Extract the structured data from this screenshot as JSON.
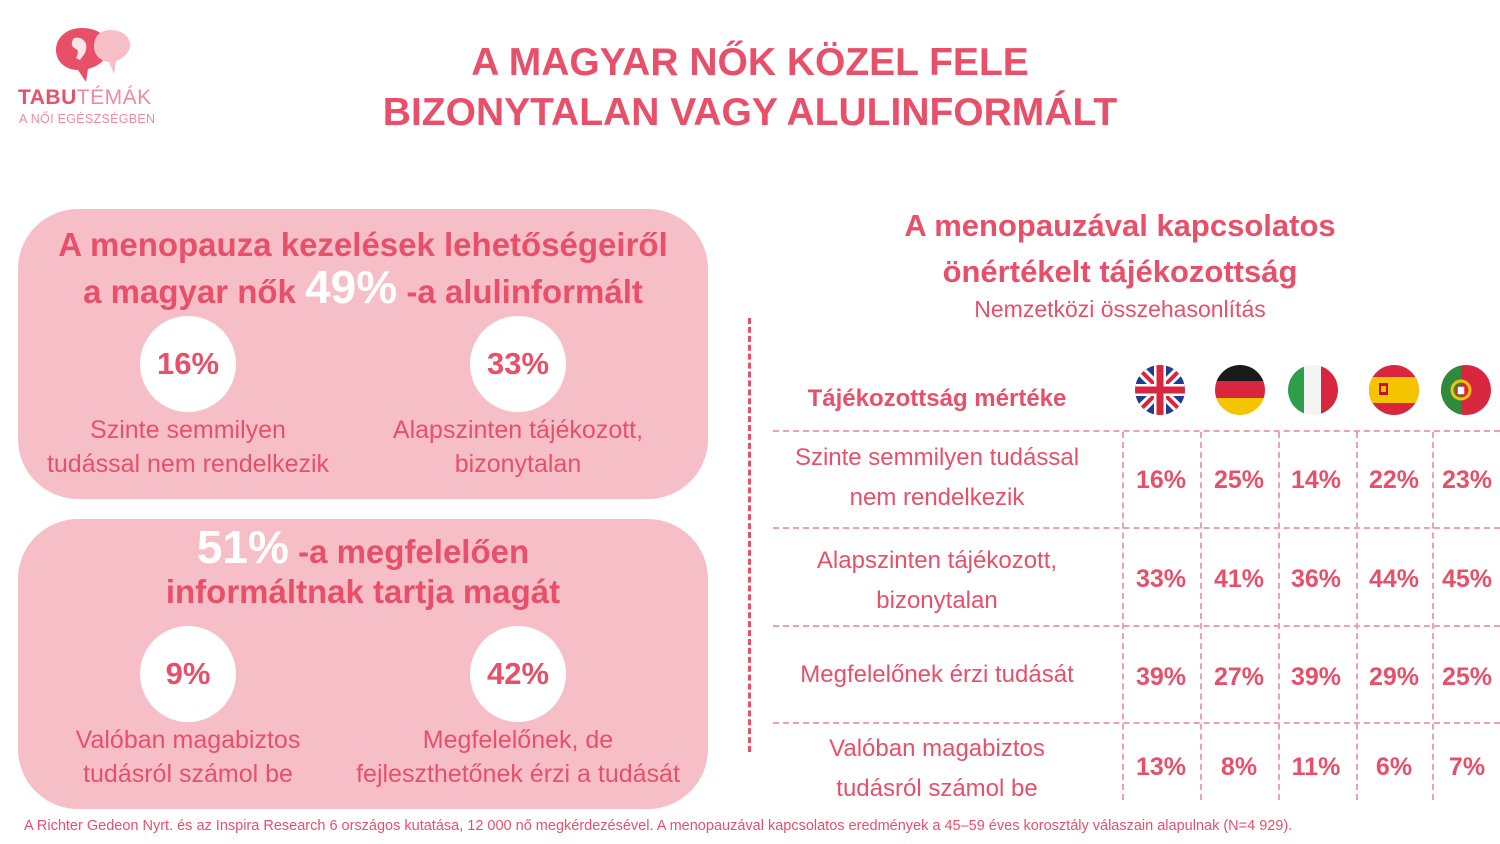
{
  "logo": {
    "icon": "speech-bubble-woman-profile-icon",
    "word_bold": "TABU",
    "word_light": "TÉMÁK",
    "tagline": "A NŐI EGÉSZSÉGBEN"
  },
  "title_line1": "A MAGYAR NŐK KÖZEL FELE",
  "title_line2": "BIZONYTALAN VAGY ALULINFORMÁLT",
  "panel1": {
    "head_line1": "A menopauza kezelések lehetőségeiről",
    "head_pre": "a magyar nők",
    "head_pct": "49%",
    "head_post": "-a alulinformált",
    "items": [
      {
        "pct": "16%",
        "label_line1": "Szinte semmilyen",
        "label_line2": "tudással nem rendelkezik"
      },
      {
        "pct": "33%",
        "label_line1": "Alapszinten tájékozott,",
        "label_line2": "bizonytalan"
      }
    ]
  },
  "panel2": {
    "head_pct": "51%",
    "head_post": "-a megfelelően",
    "head_line2": "informáltnak tartja magát",
    "items": [
      {
        "pct": "9%",
        "label_line1": "Valóban magabiztos",
        "label_line2": "tudásról számol be"
      },
      {
        "pct": "42%",
        "label_line1": "Megfelelőnek, de",
        "label_line2": "fejleszthetőnek érzi a tudását"
      }
    ]
  },
  "right": {
    "title_line1": "A menopauzával kapcsolatos",
    "title_line2": "önértékelt tájékozottság",
    "subtitle": "Nemzetközi összehasonlítás"
  },
  "chart_data": {
    "type": "table",
    "row_header": "Tájékozottság mértéke",
    "columns": [
      "uk-flag-icon",
      "germany-flag-icon",
      "italy-flag-icon",
      "spain-flag-icon",
      "portugal-flag-icon"
    ],
    "rows": [
      {
        "label_line1": "Szinte semmilyen tudással",
        "label_line2": "nem rendelkezik",
        "values": [
          "16%",
          "25%",
          "14%",
          "22%",
          "23%"
        ]
      },
      {
        "label_line1": "Alapszinten tájékozott,",
        "label_line2": "bizonytalan",
        "values": [
          "33%",
          "41%",
          "36%",
          "44%",
          "45%"
        ]
      },
      {
        "label_line1": "Megfelelőnek érzi tudását",
        "label_line2": "",
        "values": [
          "39%",
          "27%",
          "39%",
          "29%",
          "25%"
        ]
      },
      {
        "label_line1": "Valóban magabiztos",
        "label_line2": "tudásról számol be",
        "values": [
          "13%",
          "8%",
          "11%",
          "6%",
          "7%"
        ]
      }
    ]
  },
  "colors": {
    "accent": "#e8506a",
    "panel": "#f6bfc8"
  },
  "footnote": "A Richter Gedeon Nyrt. és az Inspira Research 6 országos kutatása, 12 000 nő megkérdezésével. A menopauzával kapcsolatos eredmények a 45–59 éves korosztály válaszain alapulnak (N=4 929)."
}
